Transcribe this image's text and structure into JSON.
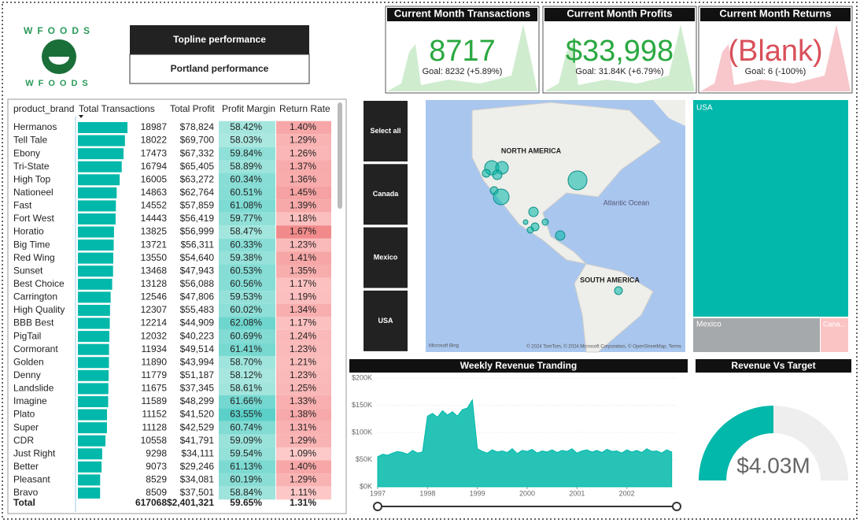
{
  "logo": {
    "text": "WFOODS"
  },
  "buttons": [
    "Topline performance",
    "Portland performance"
  ],
  "kpis": [
    {
      "title": "Current Month Transactions",
      "value": "8717",
      "goal": "Goal: 8232 (+5.89%)"
    },
    {
      "title": "Current Month Profits",
      "value": "$33,998",
      "goal": "Goal: 31.84K (+6.79%)"
    },
    {
      "title": "Current Month Returns",
      "value": "(Blank)",
      "goal": "Goal: 6 (-100%)"
    }
  ],
  "table": {
    "headers": [
      "product_brand",
      "Total Transactions",
      "Total Profit",
      "Profit Margin",
      "Return Rate"
    ],
    "rows": [
      [
        "Hermanos",
        18987,
        "$78,824",
        "58.42%",
        "1.40%"
      ],
      [
        "Tell Tale",
        18022,
        "$69,700",
        "58.03%",
        "1.29%"
      ],
      [
        "Ebony",
        17473,
        "$67,332",
        "59.84%",
        "1.26%"
      ],
      [
        "Tri-State",
        16794,
        "$65,405",
        "58.89%",
        "1.37%"
      ],
      [
        "High Top",
        16005,
        "$63,272",
        "60.34%",
        "1.36%"
      ],
      [
        "Nationeel",
        14863,
        "$62,764",
        "60.51%",
        "1.45%"
      ],
      [
        "Fast",
        14552,
        "$57,859",
        "61.08%",
        "1.39%"
      ],
      [
        "Fort West",
        14443,
        "$56,419",
        "59.77%",
        "1.18%"
      ],
      [
        "Horatio",
        13825,
        "$56,999",
        "58.47%",
        "1.67%"
      ],
      [
        "Big Time",
        13721,
        "$56,311",
        "60.33%",
        "1.23%"
      ],
      [
        "Red Wing",
        13550,
        "$54,640",
        "59.38%",
        "1.41%"
      ],
      [
        "Sunset",
        13468,
        "$47,943",
        "60.53%",
        "1.35%"
      ],
      [
        "Best Choice",
        13128,
        "$56,088",
        "60.56%",
        "1.17%"
      ],
      [
        "Carrington",
        12546,
        "$47,806",
        "59.53%",
        "1.19%"
      ],
      [
        "High Quality",
        12307,
        "$55,483",
        "60.02%",
        "1.34%"
      ],
      [
        "BBB Best",
        12214,
        "$44,909",
        "62.08%",
        "1.17%"
      ],
      [
        "PigTail",
        12032,
        "$40,223",
        "60.69%",
        "1.24%"
      ],
      [
        "Cormorant",
        11934,
        "$49,514",
        "61.41%",
        "1.23%"
      ],
      [
        "Golden",
        11890,
        "$43,994",
        "58.70%",
        "1.21%"
      ],
      [
        "Denny",
        11779,
        "$51,187",
        "58.12%",
        "1.23%"
      ],
      [
        "Landslide",
        11675,
        "$37,345",
        "58.61%",
        "1.25%"
      ],
      [
        "Imagine",
        11589,
        "$48,299",
        "61.66%",
        "1.33%"
      ],
      [
        "Plato",
        11152,
        "$41,520",
        "63.55%",
        "1.38%"
      ],
      [
        "Super",
        11128,
        "$42,529",
        "60.74%",
        "1.31%"
      ],
      [
        "CDR",
        10558,
        "$41,791",
        "59.09%",
        "1.29%"
      ],
      [
        "Just Right",
        9298,
        "$34,111",
        "59.54%",
        "1.09%"
      ],
      [
        "Better",
        9073,
        "$29,246",
        "61.13%",
        "1.40%"
      ],
      [
        "Pleasant",
        8529,
        "$34,081",
        "60.19%",
        "1.29%"
      ],
      [
        "Bravo",
        8509,
        "$37,501",
        "58.84%",
        "1.11%"
      ]
    ],
    "total": [
      "Total",
      617068,
      "$2,401,321",
      "59.65%",
      "1.31%"
    ]
  },
  "slicer": [
    "Select all",
    "Canada",
    "Mexico",
    "USA"
  ],
  "map": {
    "labels": [
      "NORTH AMERICA",
      "SOUTH AMERICA",
      "Atlantic Ocean"
    ],
    "credit": "© 2024 TomTom, © 2024 Microsoft Corporation, © OpenStreetMap, Terms",
    "brand": "Microsoft Bing"
  },
  "treemap": [
    "USA",
    "Mexico",
    "Cana..."
  ],
  "gauge": {
    "title": "Revenue Vs Target",
    "value": "$4.03M"
  },
  "chart_data": {
    "type": "area",
    "title": "Weekly Revenue Tranding",
    "color": "#01b8aa",
    "x": [
      1997,
      1997.1,
      1997.2,
      1997.3,
      1997.4,
      1997.5,
      1997.6,
      1997.7,
      1997.8,
      1997.9,
      1998,
      1998.1,
      1998.2,
      1998.3,
      1998.4,
      1998.5,
      1998.6,
      1998.7,
      1998.8,
      1998.9,
      1999,
      1999.1,
      1999.2,
      1999.3,
      1999.4,
      1999.5,
      1999.6,
      1999.7,
      1999.8,
      1999.9,
      2000,
      2000.1,
      2000.2,
      2000.3,
      2000.4,
      2000.5,
      2000.6,
      2000.7,
      2000.8,
      2000.9,
      2001,
      2001.1,
      2001.2,
      2001.3,
      2001.4,
      2001.5,
      2001.6,
      2001.7,
      2001.8,
      2001.9,
      2002,
      2002.1,
      2002.2,
      2002.3,
      2002.4,
      2002.5,
      2002.6,
      2002.7,
      2002.8,
      2002.9
    ],
    "values": [
      55000,
      60000,
      58000,
      62000,
      65000,
      63000,
      60000,
      67000,
      62000,
      64000,
      130000,
      135000,
      128000,
      140000,
      132000,
      138000,
      130000,
      142000,
      145000,
      160000,
      70000,
      65000,
      62000,
      68000,
      64000,
      66000,
      63000,
      70000,
      61000,
      67000,
      65000,
      69000,
      62000,
      66000,
      64000,
      68000,
      63000,
      67000,
      65000,
      70000,
      62000,
      66000,
      68000,
      64000,
      67000,
      63000,
      69000,
      65000,
      66000,
      62000,
      68000,
      64000,
      67000,
      63000,
      70000,
      65000,
      66000,
      62000,
      68000,
      64000
    ],
    "xlim": [
      1997,
      2003
    ],
    "xticks": [
      1997,
      1998,
      1999,
      2000,
      2001,
      2002
    ],
    "ylim": [
      0,
      200000
    ],
    "yticks": [
      {
        "value": 0,
        "label": "$0K"
      },
      {
        "value": 50000,
        "label": "$50K"
      },
      {
        "value": 100000,
        "label": "$100K"
      },
      {
        "value": 150000,
        "label": "$150K"
      },
      {
        "value": 200000,
        "label": "$200K"
      }
    ]
  }
}
